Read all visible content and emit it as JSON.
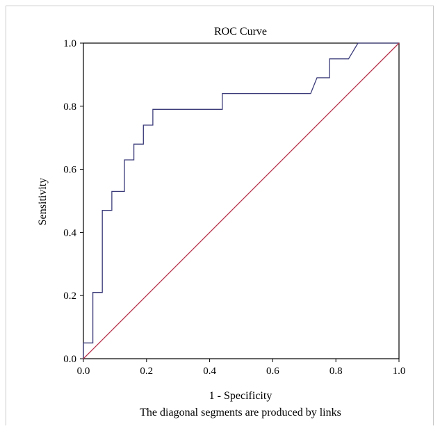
{
  "chart_data": {
    "type": "line",
    "title": "ROC Curve",
    "xlabel": "1 - Specificity",
    "ylabel": "Sensitivity",
    "footnote": "The diagonal segments are produced by links",
    "xlim": [
      0,
      1
    ],
    "ylim": [
      0,
      1
    ],
    "xticks": [
      "0.0",
      "0.2",
      "0.4",
      "0.6",
      "0.8",
      "1.0"
    ],
    "yticks": [
      "0.0",
      "0.2",
      "0.4",
      "0.6",
      "0.8",
      "1.0"
    ],
    "grid": false,
    "series": [
      {
        "color": "#3b3b7a",
        "x": [
          0,
          0,
          0.03,
          0.03,
          0.06,
          0.06,
          0.09,
          0.09,
          0.13,
          0.13,
          0.16,
          0.16,
          0.19,
          0.19,
          0.22,
          0.22,
          0.44,
          0.44,
          0.72,
          0.74,
          0.78,
          0.78,
          0.84,
          0.87,
          1.0
        ],
        "y": [
          0,
          0.05,
          0.05,
          0.21,
          0.21,
          0.47,
          0.47,
          0.53,
          0.53,
          0.63,
          0.63,
          0.68,
          0.68,
          0.74,
          0.74,
          0.79,
          0.79,
          0.84,
          0.84,
          0.89,
          0.89,
          0.95,
          0.95,
          1.0,
          1.0
        ]
      },
      {
        "color": "#b5304a",
        "x": [
          0,
          1
        ],
        "y": [
          0,
          1
        ]
      }
    ]
  }
}
